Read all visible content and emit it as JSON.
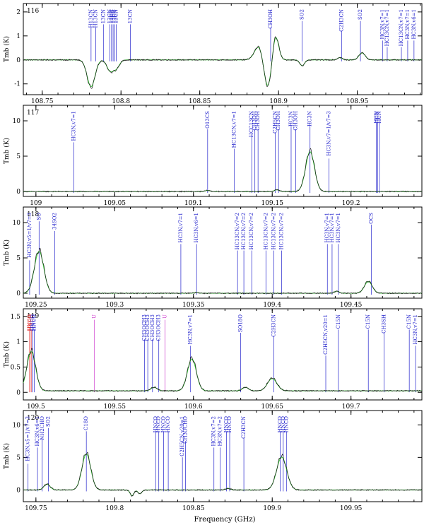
{
  "figure": {
    "xlabel": "Frequency (GHz)",
    "colors": {
      "observed": "#1a1a1a",
      "model": "#33cc33",
      "line_blue": "#2222cc",
      "line_magenta": "#cc33cc",
      "line_red": "#dd1111",
      "axis": "#000000"
    }
  },
  "chart_data": [
    {
      "type": "line",
      "panel_number": "116",
      "ylabel": "Tmb (K)",
      "xlim": [
        108.738,
        108.991
      ],
      "ylim": [
        -1.45,
        2.35
      ],
      "xticks": [
        108.75,
        108.8,
        108.85,
        108.9,
        108.95
      ],
      "xticklabels": [
        "108.75",
        "108.8",
        "108.85",
        "108.9",
        "108.95"
      ],
      "yticks": [
        -1,
        0,
        1,
        2
      ],
      "yticklabels": [
        "-1",
        "0",
        "1",
        "2"
      ],
      "baseline": 0,
      "features": [
        {
          "x": 108.781,
          "amp": -1.15,
          "w": 0.0025
        },
        {
          "x": 108.793,
          "amp": -0.45,
          "w": 0.002
        },
        {
          "x": 108.797,
          "amp": -0.35,
          "w": 0.002
        },
        {
          "x": 108.888,
          "amp": 0.65,
          "w": 0.003
        },
        {
          "x": 108.893,
          "amp": -1.3,
          "w": 0.0025
        },
        {
          "x": 108.898,
          "amp": 1.1,
          "w": 0.002
        },
        {
          "x": 108.915,
          "amp": -0.25,
          "w": 0.0015
        },
        {
          "x": 108.939,
          "amp": 0.1,
          "w": 0.0015
        },
        {
          "x": 108.953,
          "amp": 0.3,
          "w": 0.002
        }
      ],
      "markers": [
        {
          "x": 108.781,
          "label": "H13CN",
          "color": "blue"
        },
        {
          "x": 108.784,
          "label": "H13CN",
          "color": "blue"
        },
        {
          "x": 108.789,
          "label": "13CN",
          "color": "blue"
        },
        {
          "x": 108.793,
          "label": "13CN",
          "color": "blue"
        },
        {
          "x": 108.794,
          "label": "13CN",
          "color": "blue"
        },
        {
          "x": 108.795,
          "label": "13CN",
          "color": "blue"
        },
        {
          "x": 108.796,
          "label": "13CN",
          "color": "blue"
        },
        {
          "x": 108.797,
          "label": "13CN",
          "color": "blue"
        },
        {
          "x": 108.806,
          "label": "13CN",
          "color": "blue"
        },
        {
          "x": 108.895,
          "label": "CH3OH",
          "color": "blue"
        },
        {
          "x": 108.915,
          "label": "SO2",
          "color": "blue"
        },
        {
          "x": 108.94,
          "label": "C2H3CN",
          "color": "blue"
        },
        {
          "x": 108.952,
          "label": "SO2",
          "color": "blue"
        },
        {
          "x": 108.966,
          "label": "HC3N,v7=1",
          "color": "blue"
        },
        {
          "x": 108.969,
          "label": "HC13CN,v7=1",
          "color": "blue"
        },
        {
          "x": 108.978,
          "label": "HC13CN,v7=1",
          "color": "blue"
        },
        {
          "x": 108.982,
          "label": "HC3N,v7=1",
          "color": "blue"
        },
        {
          "x": 108.986,
          "label": "HC3N,v6=1",
          "color": "blue"
        }
      ]
    },
    {
      "type": "line",
      "panel_number": "117",
      "ylabel": "Tmb (K)",
      "xlim": [
        108.992,
        109.245
      ],
      "ylim": [
        -0.7,
        12.2
      ],
      "xticks": [
        109.0,
        109.05,
        109.1,
        109.15,
        109.2
      ],
      "xticklabels": [
        "109",
        "109.05",
        "109.1",
        "109.15",
        "109.2"
      ],
      "yticks": [
        0,
        5,
        10
      ],
      "yticklabels": [
        "0",
        "5",
        "10"
      ],
      "baseline": 0,
      "features": [
        {
          "x": 109.174,
          "amp": 5.8,
          "w": 0.0028
        },
        {
          "x": 109.153,
          "amp": 0.25,
          "w": 0.0015
        },
        {
          "x": 109.109,
          "amp": 0.15,
          "w": 0.0015
        }
      ],
      "markers": [
        {
          "x": 109.024,
          "label": "HC3N,v7=1",
          "color": "blue"
        },
        {
          "x": 109.109,
          "label": "O13CS",
          "color": "blue"
        },
        {
          "x": 109.126,
          "label": "HC13CN,v7=1",
          "color": "blue"
        },
        {
          "x": 109.137,
          "label": "HCC13CN",
          "color": "blue"
        },
        {
          "x": 109.139,
          "label": "CH3OH",
          "color": "blue"
        },
        {
          "x": 109.141,
          "label": "CH3OH",
          "color": "blue"
        },
        {
          "x": 109.152,
          "label": "C2H5CN",
          "color": "blue"
        },
        {
          "x": 109.154,
          "label": "CH3OH",
          "color": "blue"
        },
        {
          "x": 109.162,
          "label": "HC3N",
          "color": "blue"
        },
        {
          "x": 109.165,
          "label": "CH3OH",
          "color": "blue"
        },
        {
          "x": 109.174,
          "label": "HC3N",
          "color": "blue"
        },
        {
          "x": 109.186,
          "label": "HC3N,v7=1/v7=3",
          "color": "blue"
        },
        {
          "x": 109.216,
          "label": "HCN",
          "color": "blue"
        },
        {
          "x": 109.217,
          "label": "HCN",
          "color": "blue"
        },
        {
          "x": 109.218,
          "label": "HCN",
          "color": "blue"
        }
      ]
    },
    {
      "type": "line",
      "panel_number": "118",
      "ylabel": "Tmb (K)",
      "xlim": [
        109.242,
        109.495
      ],
      "ylim": [
        -0.7,
        12.2
      ],
      "xticks": [
        109.25,
        109.3,
        109.35,
        109.4,
        109.45
      ],
      "xticklabels": [
        "109.25",
        "109.3",
        "109.35",
        "109.4",
        "109.45"
      ],
      "yticks": [
        0,
        5,
        10
      ],
      "yticklabels": [
        "0",
        "5",
        "10"
      ],
      "baseline": 0,
      "features": [
        {
          "x": 109.252,
          "amp": 6.1,
          "w": 0.003
        },
        {
          "x": 109.461,
          "amp": 1.7,
          "w": 0.0025
        },
        {
          "x": 109.441,
          "amp": 0.3,
          "w": 0.0015
        },
        {
          "x": 109.352,
          "amp": 0.1,
          "w": 0.0015
        }
      ],
      "markers": [
        {
          "x": 109.246,
          "label": "HC3N,v5=1/v7=3",
          "color": "blue"
        },
        {
          "x": 109.252,
          "label": "SO",
          "color": "blue"
        },
        {
          "x": 109.262,
          "label": "34SO2",
          "color": "blue"
        },
        {
          "x": 109.342,
          "label": "HC3N,v7=1",
          "color": "blue"
        },
        {
          "x": 109.352,
          "label": "HC3N,v6=1",
          "color": "blue"
        },
        {
          "x": 109.378,
          "label": "HC13CN,v7=2",
          "color": "blue"
        },
        {
          "x": 109.382,
          "label": "HC13CN,v7=2",
          "color": "blue"
        },
        {
          "x": 109.387,
          "label": "HC13CN,v7=2",
          "color": "blue"
        },
        {
          "x": 109.396,
          "label": "HC13CN,v7=2",
          "color": "blue"
        },
        {
          "x": 109.401,
          "label": "HC13CN,v7=2",
          "color": "blue"
        },
        {
          "x": 109.406,
          "label": "HC13CN,v7=2",
          "color": "blue"
        },
        {
          "x": 109.435,
          "label": "HC3N,v7=1",
          "color": "blue"
        },
        {
          "x": 109.438,
          "label": "HC3N,v7=1",
          "color": "blue"
        },
        {
          "x": 109.442,
          "label": "HC3N,v7=1",
          "color": "blue"
        },
        {
          "x": 109.463,
          "label": "OCS",
          "color": "blue"
        }
      ]
    },
    {
      "type": "line",
      "panel_number": "119",
      "ylabel": "Tmb (K)",
      "xlim": [
        109.492,
        109.745
      ],
      "ylim": [
        -0.15,
        1.65
      ],
      "xticks": [
        109.5,
        109.55,
        109.6,
        109.65,
        109.7
      ],
      "xticklabels": [
        "109.5",
        "109.55",
        "109.6",
        "109.65",
        "109.7"
      ],
      "yticks": [
        0,
        0.5,
        1,
        1.5
      ],
      "yticklabels": [
        "0",
        "0.5",
        "1",
        "1.5"
      ],
      "baseline": 0.03,
      "features": [
        {
          "x": 109.497,
          "amp": 0.8,
          "w": 0.0028
        },
        {
          "x": 109.599,
          "amp": 0.65,
          "w": 0.0028
        },
        {
          "x": 109.65,
          "amp": 0.25,
          "w": 0.003
        },
        {
          "x": 109.575,
          "amp": 0.07,
          "w": 0.002
        },
        {
          "x": 109.633,
          "amp": 0.07,
          "w": 0.002
        }
      ],
      "markers": [
        {
          "x": 109.496,
          "label": "HNCO",
          "color": "red"
        },
        {
          "x": 109.497,
          "label": "HNCO",
          "color": "red"
        },
        {
          "x": 109.498,
          "label": "HNCO",
          "color": "blue"
        },
        {
          "x": 109.499,
          "label": "HNCO",
          "color": "blue"
        },
        {
          "x": 109.537,
          "label": "U",
          "color": "magenta"
        },
        {
          "x": 109.569,
          "label": "CH3OCH3",
          "color": "blue"
        },
        {
          "x": 109.571,
          "label": "CH3OCH3",
          "color": "blue"
        },
        {
          "x": 109.574,
          "label": "CH3OCH3",
          "color": "blue"
        },
        {
          "x": 109.578,
          "label": "CH3OCH3",
          "color": "blue"
        },
        {
          "x": 109.582,
          "label": "U",
          "color": "magenta"
        },
        {
          "x": 109.598,
          "label": "HC3N,v7=1",
          "color": "blue"
        },
        {
          "x": 109.63,
          "label": "SO18O",
          "color": "blue"
        },
        {
          "x": 109.651,
          "label": "C2H3CN",
          "color": "blue"
        },
        {
          "x": 109.684,
          "label": "C2H5CN,v20=1",
          "color": "blue"
        },
        {
          "x": 109.692,
          "label": "C15N",
          "color": "blue"
        },
        {
          "x": 109.711,
          "label": "C15N",
          "color": "blue"
        },
        {
          "x": 109.721,
          "label": "CH3SH",
          "color": "blue"
        },
        {
          "x": 109.737,
          "label": "C15N",
          "color": "blue"
        },
        {
          "x": 109.741,
          "label": "HC3N,v7=1",
          "color": "blue"
        }
      ]
    },
    {
      "type": "line",
      "panel_number": "120",
      "ylabel": "Tmb (K)",
      "xlim": [
        109.742,
        109.995
      ],
      "ylim": [
        -1.8,
        12.2
      ],
      "xticks": [
        109.75,
        109.8,
        109.85,
        109.9,
        109.95
      ],
      "xticklabels": [
        "109.75",
        "109.8",
        "109.85",
        "109.9",
        "109.95"
      ],
      "yticks": [
        0,
        5,
        10
      ],
      "yticklabels": [
        "0",
        "5",
        "10"
      ],
      "baseline": 0,
      "features": [
        {
          "x": 109.782,
          "amp": 5.7,
          "w": 0.0028
        },
        {
          "x": 109.906,
          "amp": 5.2,
          "w": 0.0032
        },
        {
          "x": 109.757,
          "amp": 0.9,
          "w": 0.002
        },
        {
          "x": 109.811,
          "amp": -0.9,
          "w": 0.0012
        },
        {
          "x": 109.816,
          "amp": -0.6,
          "w": 0.0012
        },
        {
          "x": 109.872,
          "amp": 0.25,
          "w": 0.0015
        }
      ],
      "markers": [
        {
          "x": 109.745,
          "label": "HC3N,v5=1/v7=3",
          "color": "blue"
        },
        {
          "x": 109.751,
          "label": "HC3N,v6=1",
          "color": "blue"
        },
        {
          "x": 109.754,
          "label": "NH2CHO",
          "color": "blue"
        },
        {
          "x": 109.758,
          "label": "SO2",
          "color": "blue"
        },
        {
          "x": 109.782,
          "label": "C18O",
          "color": "blue"
        },
        {
          "x": 109.826,
          "label": "HNCO",
          "color": "blue"
        },
        {
          "x": 109.828,
          "label": "HNCO",
          "color": "blue"
        },
        {
          "x": 109.831,
          "label": "HNCO",
          "color": "blue"
        },
        {
          "x": 109.834,
          "label": "HNCO",
          "color": "blue"
        },
        {
          "x": 109.843,
          "label": "C2H5CN,v20=1",
          "color": "blue"
        },
        {
          "x": 109.845,
          "label": "CH3OCHO",
          "color": "blue"
        },
        {
          "x": 109.863,
          "label": "HC3N,v7=2",
          "color": "blue"
        },
        {
          "x": 109.867,
          "label": "HC3N,v7=2",
          "color": "blue"
        },
        {
          "x": 109.871,
          "label": "HNCO",
          "color": "blue"
        },
        {
          "x": 109.873,
          "label": "HNCO",
          "color": "blue"
        },
        {
          "x": 109.882,
          "label": "C2H3CN",
          "color": "blue"
        },
        {
          "x": 109.905,
          "label": "HNCO",
          "color": "blue"
        },
        {
          "x": 109.907,
          "label": "HNCO",
          "color": "blue"
        },
        {
          "x": 109.909,
          "label": "HNCO",
          "color": "blue"
        }
      ]
    }
  ]
}
